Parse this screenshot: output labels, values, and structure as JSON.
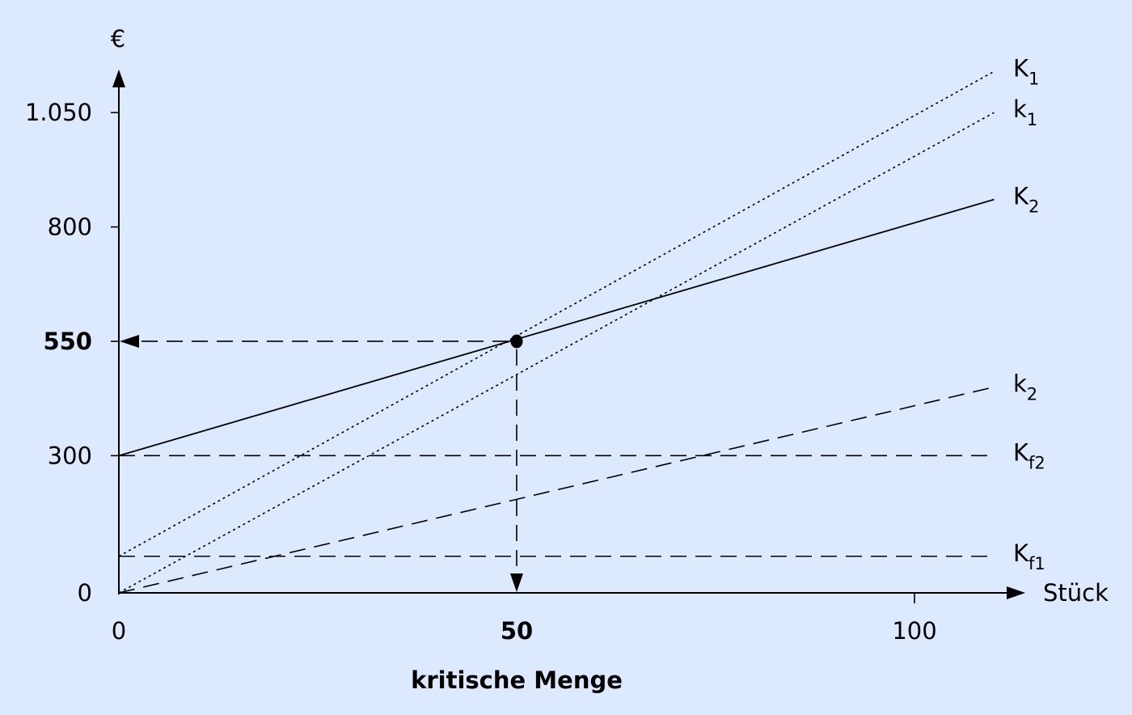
{
  "chart_data": {
    "type": "line",
    "ylabel": "€",
    "xlabel": "Stück",
    "x_annotation": "kritische Menge",
    "xlim": [
      0,
      110
    ],
    "ylim": [
      0,
      1150
    ],
    "x_ticks": [
      {
        "value": 0,
        "label": "0",
        "bold": false
      },
      {
        "value": 50,
        "label": "50",
        "bold": true
      },
      {
        "value": 100,
        "label": "100",
        "bold": false
      }
    ],
    "y_ticks": [
      {
        "value": 0,
        "label": "0",
        "bold": false
      },
      {
        "value": 300,
        "label": "300",
        "bold": false
      },
      {
        "value": 550,
        "label": "550",
        "bold": true
      },
      {
        "value": 800,
        "label": "800",
        "bold": false
      },
      {
        "value": 1050,
        "label": "1.050",
        "bold": false
      }
    ],
    "series": [
      {
        "name": "K",
        "sub": "1",
        "style": "dotted",
        "points": [
          [
            0,
            80
          ],
          [
            110,
            1140
          ]
        ]
      },
      {
        "name": "k",
        "sub": "1",
        "style": "dotted",
        "points": [
          [
            0,
            0
          ],
          [
            110,
            1050
          ]
        ]
      },
      {
        "name": "K",
        "sub": "2",
        "style": "solid",
        "points": [
          [
            0,
            300
          ],
          [
            110,
            860
          ]
        ]
      },
      {
        "name": "k",
        "sub": "2",
        "style": "dashed",
        "points": [
          [
            0,
            0
          ],
          [
            110,
            450
          ]
        ]
      },
      {
        "name": "K",
        "sub": "f2",
        "style": "dashed",
        "points": [
          [
            0,
            300
          ],
          [
            110,
            300
          ]
        ]
      },
      {
        "name": "K",
        "sub": "f1",
        "style": "dashed",
        "points": [
          [
            0,
            80
          ],
          [
            110,
            80
          ]
        ]
      }
    ],
    "intersection": {
      "x": 50,
      "y": 550
    }
  }
}
